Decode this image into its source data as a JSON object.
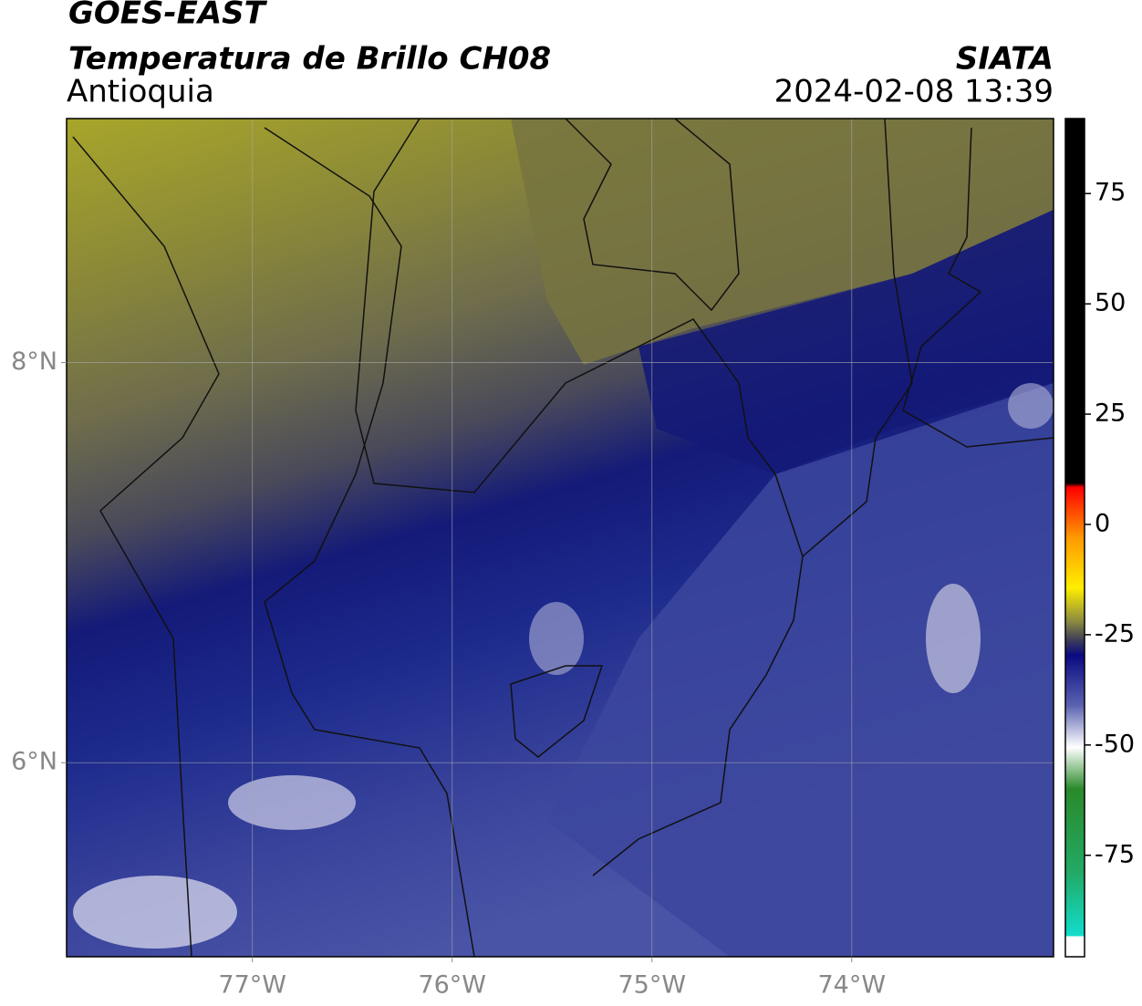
{
  "header": {
    "title": "GOES-EAST",
    "subtitle": "Temperatura de Brillo CH08",
    "region": "Antioquia",
    "source": "SIATA",
    "datetime": "2024-02-08 13:39"
  },
  "map": {
    "xlim": [
      -77.93,
      -72.99
    ],
    "ylim": [
      5.03,
      9.22
    ],
    "xticks": [
      {
        "value": -77,
        "label": "77°W"
      },
      {
        "value": -76,
        "label": "76°W"
      },
      {
        "value": -75,
        "label": "75°W"
      },
      {
        "value": -74,
        "label": "74°W"
      }
    ],
    "yticks": [
      {
        "value": 8,
        "label": "8°N"
      },
      {
        "value": 6,
        "label": "6°N"
      }
    ],
    "grid": true
  },
  "colorbar": {
    "lim": [
      -98,
      92
    ],
    "ticks": [
      75,
      50,
      25,
      0,
      -25,
      -50,
      -75
    ]
  }
}
